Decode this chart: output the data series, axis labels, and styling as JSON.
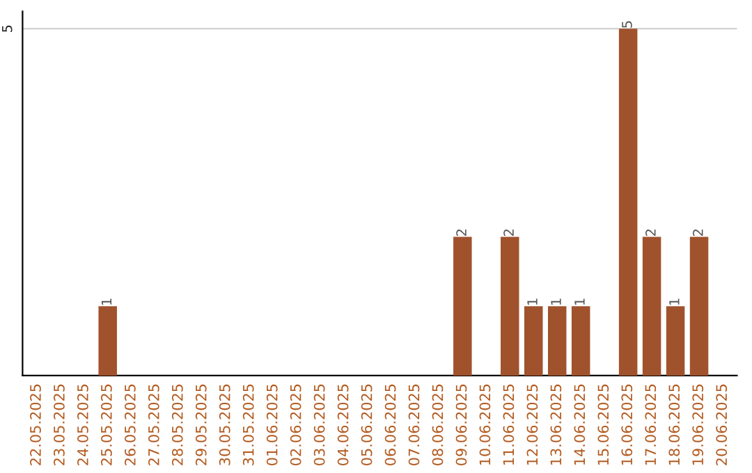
{
  "chart_data": {
    "type": "bar",
    "categories": [
      "22.05.2025",
      "23.05.2025",
      "24.05.2025",
      "25.05.2025",
      "26.05.2025",
      "27.05.2025",
      "28.05.2025",
      "29.05.2025",
      "30.05.2025",
      "31.05.2025",
      "01.06.2025",
      "02.06.2025",
      "03.06.2025",
      "04.06.2025",
      "05.06.2025",
      "06.06.2025",
      "07.06.2025",
      "08.06.2025",
      "09.06.2025",
      "10.06.2025",
      "11.06.2025",
      "12.06.2025",
      "13.06.2025",
      "14.06.2025",
      "15.06.2025",
      "16.06.2025",
      "17.06.2025",
      "18.06.2025",
      "19.06.2025",
      "20.06.2025"
    ],
    "values": [
      null,
      null,
      null,
      1,
      null,
      null,
      null,
      null,
      null,
      null,
      null,
      null,
      null,
      null,
      null,
      null,
      null,
      null,
      2,
      null,
      2,
      1,
      1,
      1,
      null,
      5,
      2,
      1,
      2,
      null
    ],
    "value_labels": [
      null,
      null,
      null,
      "1",
      null,
      null,
      null,
      null,
      null,
      null,
      null,
      null,
      null,
      null,
      null,
      null,
      null,
      null,
      "2",
      null,
      "2",
      "1",
      "1",
      "1",
      null,
      "5",
      "2",
      "1",
      "2",
      null
    ],
    "color": "#a0522d",
    "ylim": [
      0,
      5.25
    ],
    "yticks": [
      5
    ],
    "grid": "y"
  }
}
